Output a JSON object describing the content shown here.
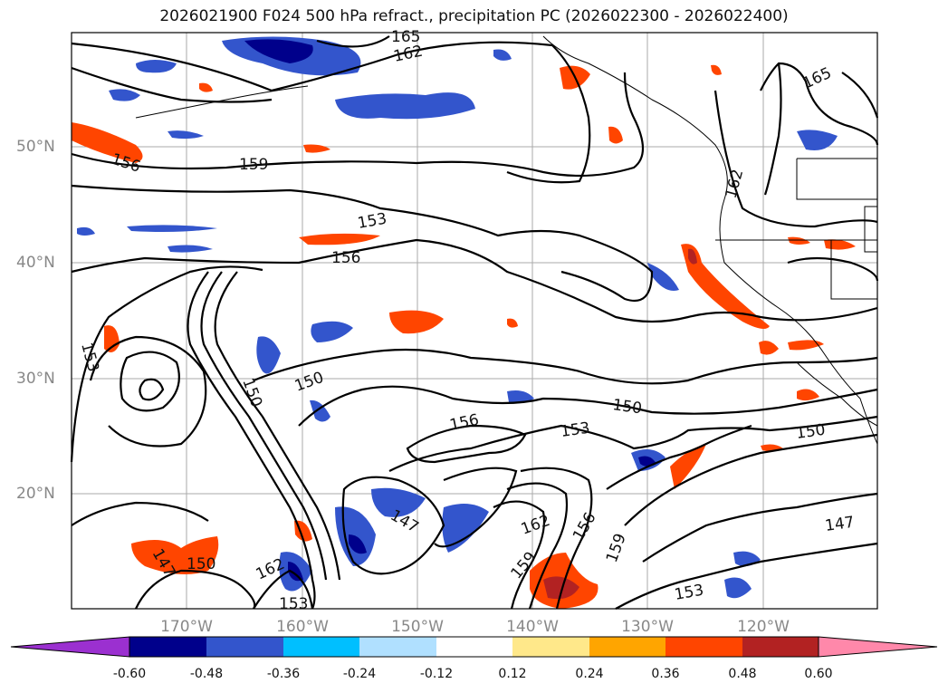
{
  "title": "2026021900 F024 500 hPa refract., precipitation PC (2026022300 - 2026022400)",
  "axes": {
    "lat_labels": [
      "50°N",
      "40°N",
      "30°N",
      "20°N"
    ],
    "lon_labels": [
      "170°W",
      "160°W",
      "150°W",
      "140°W",
      "130°W",
      "120°W"
    ]
  },
  "contour_labels": [
    "165",
    "162",
    "159",
    "156",
    "153",
    "156",
    "153",
    "150",
    "150",
    "156",
    "153",
    "150",
    "150",
    "147",
    "147",
    "150",
    "162",
    "153",
    "162",
    "156",
    "159",
    "159",
    "153",
    "147",
    "165",
    "162"
  ],
  "colorbar": {
    "ticks": [
      "-0.60",
      "-0.48",
      "-0.36",
      "-0.24",
      "-0.12",
      "0.12",
      "0.24",
      "0.36",
      "0.48",
      "0.60"
    ],
    "colors": [
      "#9b30d0",
      "#00008b",
      "#3355cc",
      "#00bfff",
      "#b0e0ff",
      "#ffffff",
      "#ffe88a",
      "#ffa500",
      "#ff4500",
      "#b22222",
      "#ff88aa"
    ]
  },
  "colors": {
    "contour": "#000000",
    "grid": "#aaaaaa",
    "coast": "#000000"
  }
}
